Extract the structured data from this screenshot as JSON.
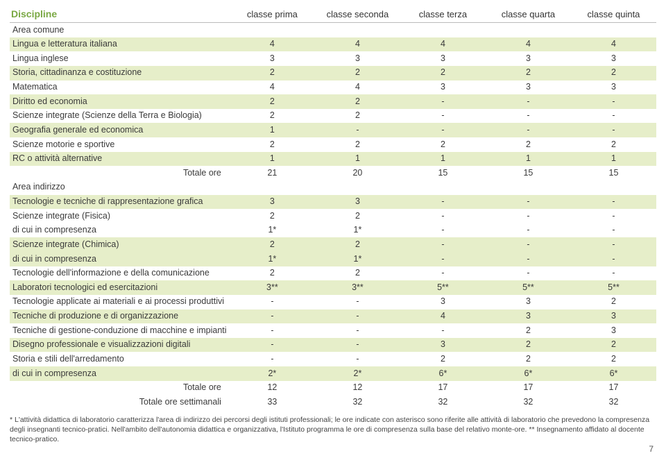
{
  "colors": {
    "row_odd_bg": "#e6eec9",
    "header_accent": "#7aa843",
    "border": "#bbbbbb",
    "text": "#3a3a3a"
  },
  "table": {
    "header_col0": "Discipline",
    "headers": [
      "classe prima",
      "classe seconda",
      "classe terza",
      "classe quarta",
      "classe quinta"
    ],
    "rows": [
      {
        "label": "Area comune",
        "cells": [
          "",
          "",
          "",
          "",
          ""
        ],
        "odd": false
      },
      {
        "label": "Lingua e letteratura italiana",
        "cells": [
          "4",
          "4",
          "4",
          "4",
          "4"
        ],
        "odd": true
      },
      {
        "label": "Lingua inglese",
        "cells": [
          "3",
          "3",
          "3",
          "3",
          "3"
        ],
        "odd": false
      },
      {
        "label": "Storia, cittadinanza e costituzione",
        "cells": [
          "2",
          "2",
          "2",
          "2",
          "2"
        ],
        "odd": true
      },
      {
        "label": "Matematica",
        "cells": [
          "4",
          "4",
          "3",
          "3",
          "3"
        ],
        "odd": false
      },
      {
        "label": "Diritto ed economia",
        "cells": [
          "2",
          "2",
          "-",
          "-",
          "-"
        ],
        "odd": true
      },
      {
        "label": "Scienze integrate (Scienze della Terra e Biologia)",
        "cells": [
          "2",
          "2",
          "-",
          "-",
          "-"
        ],
        "odd": false
      },
      {
        "label": "Geografia generale ed economica",
        "cells": [
          "1",
          "-",
          "-",
          "-",
          "-"
        ],
        "odd": true
      },
      {
        "label": "Scienze motorie e sportive",
        "cells": [
          "2",
          "2",
          "2",
          "2",
          "2"
        ],
        "odd": false
      },
      {
        "label": "RC o attività alternative",
        "cells": [
          "1",
          "1",
          "1",
          "1",
          "1"
        ],
        "odd": true
      },
      {
        "label": "Totale ore",
        "cells": [
          "21",
          "20",
          "15",
          "15",
          "15"
        ],
        "odd": false,
        "total": true
      },
      {
        "label": "Area indirizzo",
        "cells": [
          "",
          "",
          "",
          "",
          ""
        ],
        "odd": false
      },
      {
        "label": "Tecnologie e tecniche di rappresentazione grafica",
        "cells": [
          "3",
          "3",
          "-",
          "-",
          "-"
        ],
        "odd": true
      },
      {
        "label": "Scienze integrate (Fisica)",
        "cells": [
          "2",
          "2",
          "-",
          "-",
          "-"
        ],
        "odd": false
      },
      {
        "label": "di cui in compresenza",
        "cells": [
          "1*",
          "1*",
          "-",
          "-",
          "-"
        ],
        "odd": false
      },
      {
        "label": "Scienze integrate (Chimica)",
        "cells": [
          "2",
          "2",
          "-",
          "-",
          "-"
        ],
        "odd": true
      },
      {
        "label": "di cui in compresenza",
        "cells": [
          "1*",
          "1*",
          "-",
          "-",
          "-"
        ],
        "odd": true
      },
      {
        "label": "Tecnologie dell'informazione e della comunicazione",
        "cells": [
          "2",
          "2",
          "-",
          "-",
          "-"
        ],
        "odd": false
      },
      {
        "label": "Laboratori tecnologici ed esercitazioni",
        "cells": [
          "3**",
          "3**",
          "5**",
          "5**",
          "5**"
        ],
        "odd": true
      },
      {
        "label": "Tecnologie applicate ai materiali e ai processi produttivi",
        "cells": [
          "-",
          "-",
          "3",
          "3",
          "2"
        ],
        "odd": false
      },
      {
        "label": "Tecniche di produzione e di organizzazione",
        "cells": [
          "-",
          "-",
          "4",
          "3",
          "3"
        ],
        "odd": true
      },
      {
        "label": "Tecniche di gestione-conduzione di macchine e impianti",
        "cells": [
          "-",
          "-",
          "-",
          "2",
          "3"
        ],
        "odd": false
      },
      {
        "label": "Disegno professionale e visualizzazioni digitali",
        "cells": [
          "-",
          "-",
          "3",
          "2",
          "2"
        ],
        "odd": true
      },
      {
        "label": "Storia e stili dell'arredamento",
        "cells": [
          "-",
          "-",
          "2",
          "2",
          "2"
        ],
        "odd": false
      },
      {
        "label": "di cui in compresenza",
        "cells": [
          "2*",
          "2*",
          "6*",
          "6*",
          "6*"
        ],
        "odd": true
      },
      {
        "label": "Totale ore",
        "cells": [
          "12",
          "12",
          "17",
          "17",
          "17"
        ],
        "odd": false,
        "total": true
      },
      {
        "label": "Totale ore settimanali",
        "cells": [
          "33",
          "32",
          "32",
          "32",
          "32"
        ],
        "odd": false,
        "total": true
      }
    ]
  },
  "footnote": "* L'attività didattica di laboratorio caratterizza l'area di indirizzo dei percorsi degli istituti professionali; le ore indicate con asterisco sono riferite alle attività di laboratorio che prevedono la compresenza degli insegnanti tecnico-pratici. Nell'ambito dell'autonomia didattica e organizzativa, l'Istituto programma le ore di compresenza sulla base del relativo monte-ore. ** Insegnamento affidato al docente tecnico-pratico.",
  "page_number": "7"
}
